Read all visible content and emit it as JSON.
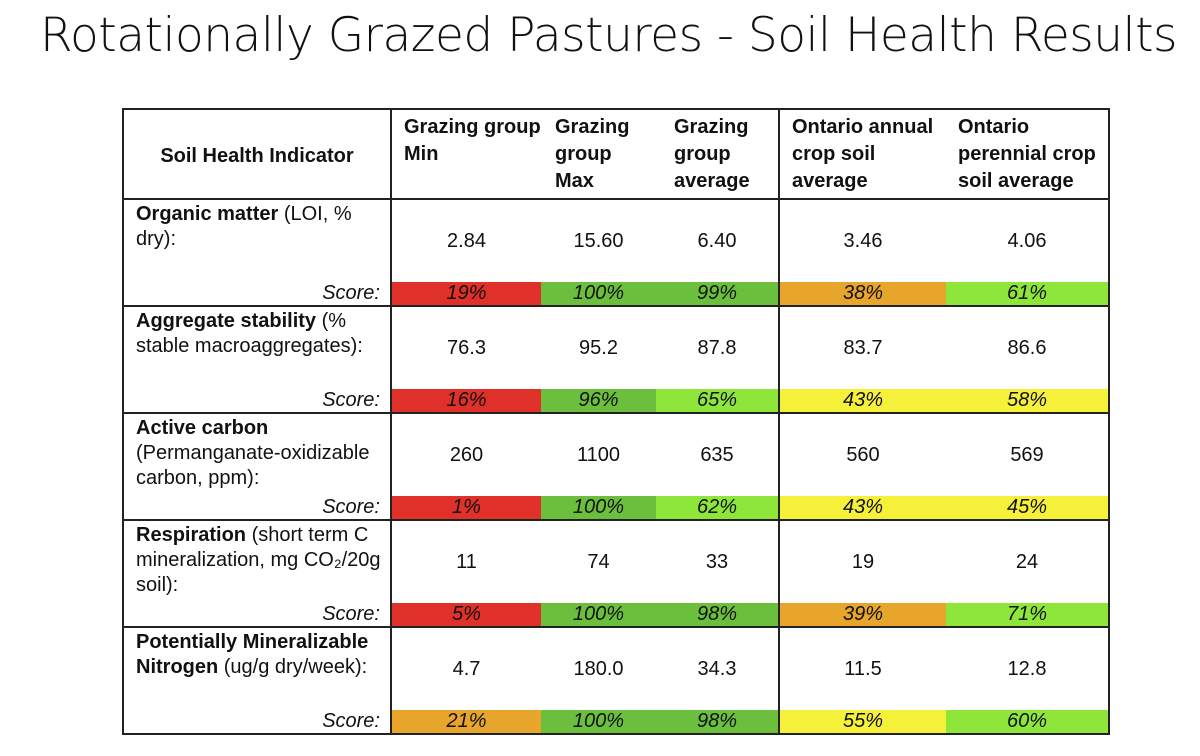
{
  "title": "Rotationally Grazed Pastures - Soil Health Results",
  "headers": [
    "Soil Health Indicator",
    "Grazing group Min",
    "Grazing group Max",
    "Grazing group average",
    "Ontario annual crop soil average",
    "Ontario perennial crop soil average"
  ],
  "score_label": "Score:",
  "colors": {
    "red": "#e0302a",
    "dark_green": "#6cbf3c",
    "light_green": "#8fe63a",
    "yellow": "#f5f03a",
    "orange": "#e8a52c"
  },
  "rows": [
    {
      "name_bold": "Organic matter",
      "name_rest": " (LOI, % dry):",
      "values": [
        "2.84",
        "15.60",
        "6.40",
        "3.46",
        "4.06"
      ],
      "scores": [
        "19%",
        "100%",
        "99%",
        "38%",
        "61%"
      ],
      "score_colors": [
        "red",
        "dark_green",
        "dark_green",
        "orange",
        "light_green"
      ]
    },
    {
      "name_bold": "Aggregate stability",
      "name_rest": " (% stable macroaggregates):",
      "values": [
        "76.3",
        "95.2",
        "87.8",
        "83.7",
        "86.6"
      ],
      "scores": [
        "16%",
        "96%",
        "65%",
        "43%",
        "58%"
      ],
      "score_colors": [
        "red",
        "dark_green",
        "light_green",
        "yellow",
        "yellow"
      ]
    },
    {
      "name_bold": "Active carbon",
      "name_rest": " (Permanganate-oxidizable carbon, ppm):",
      "values": [
        "260",
        "1100",
        "635",
        "560",
        "569"
      ],
      "scores": [
        "1%",
        "100%",
        "62%",
        "43%",
        "45%"
      ],
      "score_colors": [
        "red",
        "dark_green",
        "light_green",
        "yellow",
        "yellow"
      ]
    },
    {
      "name_bold": "Respiration",
      "name_rest": " (short term C mineralization, mg CO₂/20g soil):",
      "values": [
        "11",
        "74",
        "33",
        "19",
        "24"
      ],
      "scores": [
        "5%",
        "100%",
        "98%",
        "39%",
        "71%"
      ],
      "score_colors": [
        "red",
        "dark_green",
        "dark_green",
        "orange",
        "light_green"
      ]
    },
    {
      "name_bold": "Potentially Mineralizable Nitrogen",
      "name_rest": " (ug/g dry/week):",
      "values": [
        "4.7",
        "180.0",
        "34.3",
        "11.5",
        "12.8"
      ],
      "scores": [
        "21%",
        "100%",
        "98%",
        "55%",
        "60%"
      ],
      "score_colors": [
        "orange",
        "dark_green",
        "dark_green",
        "yellow",
        "light_green"
      ]
    }
  ]
}
